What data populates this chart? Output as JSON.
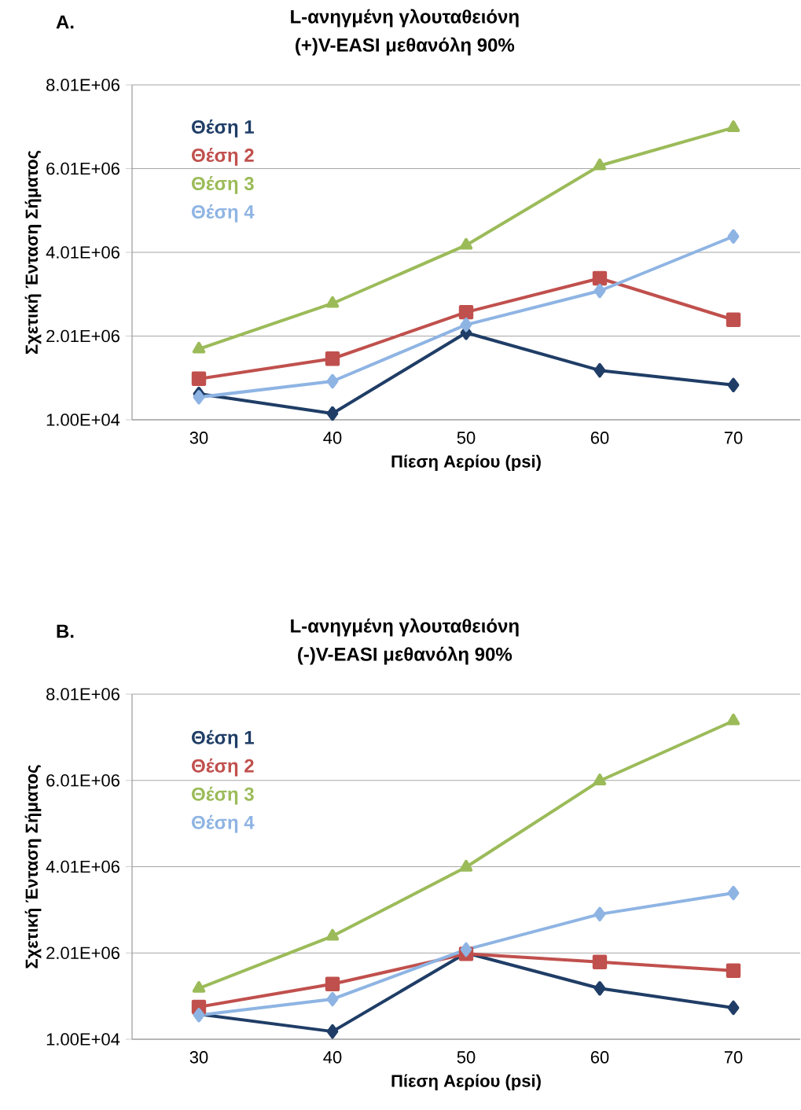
{
  "chart_data": [
    {
      "type": "line",
      "title": "L-ανηγμένη γλουταθειόνη",
      "subtitle": "(+)V-EASI μεθανόλη 90%",
      "xlabel": "Πίεση Αερίου (psi)",
      "ylabel": "Σχετική Ένταση Σήματος",
      "annotations": [
        "A."
      ],
      "categories": [
        "30",
        "40",
        "50",
        "60",
        "70"
      ],
      "series": [
        {
          "name": "Θέση 1",
          "color": "#1f3d66",
          "marker": "diamond",
          "values": [
            630000,
            160000,
            2090000,
            1190000,
            840000
          ]
        },
        {
          "name": "Θέση 2",
          "color": "#c0504d",
          "marker": "square",
          "values": [
            990000,
            1470000,
            2580000,
            3390000,
            2400000
          ]
        },
        {
          "name": "Θέση 3",
          "color": "#9bbb59",
          "marker": "triangle",
          "values": [
            1700000,
            2790000,
            4180000,
            6080000,
            6990000
          ]
        },
        {
          "name": "Θέση 4",
          "color": "#8eb4e3",
          "marker": "diamond",
          "values": [
            550000,
            930000,
            2280000,
            3090000,
            4390000
          ]
        }
      ],
      "ylim": [
        10000,
        8010000
      ],
      "yticks": [
        {
          "value": 10000,
          "label": "1.00E+04"
        },
        {
          "value": 2010000,
          "label": "2.01E+06"
        },
        {
          "value": 4010000,
          "label": "4.01E+06"
        },
        {
          "value": 6010000,
          "label": "6.01E+06"
        },
        {
          "value": 8010000,
          "label": "8.01E+06"
        }
      ],
      "grid": "y",
      "legend": "top left"
    },
    {
      "type": "line",
      "title": "L-ανηγμένη γλουταθειόνη",
      "subtitle": "(-)V-EASI μεθανόλη 90%",
      "xlabel": "Πίεση Αερίου (psi)",
      "ylabel": "Σχετική Ένταση Σήματος",
      "annotations": [
        "B."
      ],
      "categories": [
        "30",
        "40",
        "50",
        "60",
        "70"
      ],
      "series": [
        {
          "name": "Θέση 1",
          "color": "#1f3d66",
          "marker": "diamond",
          "values": [
            590000,
            190000,
            2010000,
            1190000,
            740000
          ]
        },
        {
          "name": "Θέση 2",
          "color": "#c0504d",
          "marker": "square",
          "values": [
            760000,
            1290000,
            1990000,
            1800000,
            1600000
          ]
        },
        {
          "name": "Θέση 3",
          "color": "#9bbb59",
          "marker": "triangle",
          "values": [
            1190000,
            2400000,
            4000000,
            6000000,
            7390000
          ]
        },
        {
          "name": "Θέση 4",
          "color": "#8eb4e3",
          "marker": "diamond",
          "values": [
            570000,
            940000,
            2090000,
            2910000,
            3400000
          ]
        }
      ],
      "ylim": [
        10000,
        8010000
      ],
      "yticks": [
        {
          "value": 10000,
          "label": "1.00E+04"
        },
        {
          "value": 2010000,
          "label": "2.01E+06"
        },
        {
          "value": 4010000,
          "label": "4.01E+06"
        },
        {
          "value": 6010000,
          "label": "6.01E+06"
        },
        {
          "value": 8010000,
          "label": "8.01E+06"
        }
      ],
      "grid": "y",
      "legend": "top left"
    }
  ]
}
